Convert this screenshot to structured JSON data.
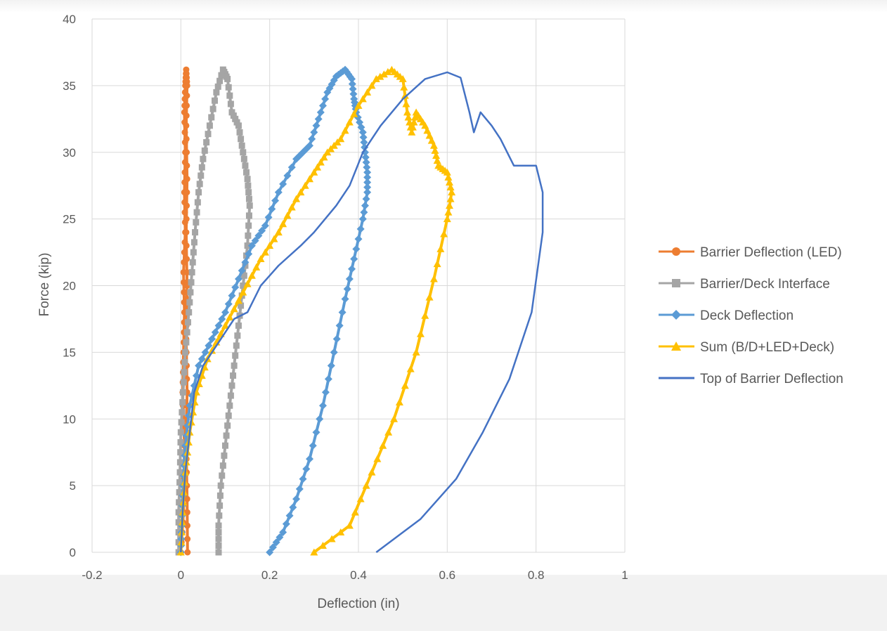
{
  "chart_data": {
    "type": "scatter",
    "title": "",
    "xlabel": "Deflection (in)",
    "ylabel": "Force (kip)",
    "xlim": [
      -0.2,
      1
    ],
    "ylim": [
      0,
      40
    ],
    "x_ticks": [
      "-0.2",
      "0",
      "0.2",
      "0.4",
      "0.6",
      "0.8",
      "1"
    ],
    "y_ticks": [
      "0",
      "5",
      "10",
      "15",
      "20",
      "25",
      "30",
      "35",
      "40"
    ],
    "grid": true,
    "legend_position": "right",
    "series": [
      {
        "name": "Barrier Deflection (LED)",
        "color": "#ED7D31",
        "marker": "circle",
        "points": [
          [
            0,
            0
          ],
          [
            0.006,
            3
          ],
          [
            0.008,
            8
          ],
          [
            0.004,
            12
          ],
          [
            0.006,
            15
          ],
          [
            0.008,
            18
          ],
          [
            0.006,
            21
          ],
          [
            0.01,
            24
          ],
          [
            0.008,
            27
          ],
          [
            0.01,
            30
          ],
          [
            0.008,
            33
          ],
          [
            0.01,
            35
          ],
          [
            0.012,
            36.2
          ],
          [
            0.014,
            35
          ],
          [
            0.012,
            32
          ],
          [
            0.014,
            28
          ],
          [
            0.012,
            24
          ],
          [
            0.014,
            20
          ],
          [
            0.012,
            16
          ],
          [
            0.014,
            12
          ],
          [
            0.012,
            8
          ],
          [
            0.014,
            4
          ],
          [
            0.015,
            0
          ]
        ]
      },
      {
        "name": "Barrier/Deck Interface",
        "color": "#A5A5A5",
        "marker": "square",
        "points": [
          [
            -0.005,
            0
          ],
          [
            -0.005,
            3
          ],
          [
            -0.002,
            6
          ],
          [
            0,
            9
          ],
          [
            0.005,
            12
          ],
          [
            0.01,
            15
          ],
          [
            0.018,
            18
          ],
          [
            0.025,
            21
          ],
          [
            0.032,
            24
          ],
          [
            0.04,
            27
          ],
          [
            0.05,
            29.5
          ],
          [
            0.065,
            32
          ],
          [
            0.08,
            34.5
          ],
          [
            0.095,
            36.2
          ],
          [
            0.105,
            35.5
          ],
          [
            0.115,
            33
          ],
          [
            0.13,
            32
          ],
          [
            0.14,
            30
          ],
          [
            0.15,
            28
          ],
          [
            0.155,
            26
          ],
          [
            0.15,
            23
          ],
          [
            0.14,
            20
          ],
          [
            0.13,
            17
          ],
          [
            0.12,
            14
          ],
          [
            0.11,
            11
          ],
          [
            0.1,
            8
          ],
          [
            0.09,
            5
          ],
          [
            0.085,
            2
          ],
          [
            0.085,
            0
          ]
        ]
      },
      {
        "name": "Deck Deflection",
        "color": "#5B9BD5",
        "marker": "diamond",
        "points": [
          [
            0,
            0
          ],
          [
            0.002,
            2
          ],
          [
            0.005,
            5
          ],
          [
            0.01,
            8
          ],
          [
            0.02,
            11
          ],
          [
            0.04,
            14
          ],
          [
            0.07,
            16
          ],
          [
            0.1,
            18
          ],
          [
            0.13,
            20.5
          ],
          [
            0.16,
            23
          ],
          [
            0.19,
            24.5
          ],
          [
            0.22,
            27
          ],
          [
            0.26,
            29.5
          ],
          [
            0.29,
            30.5
          ],
          [
            0.31,
            32.5
          ],
          [
            0.33,
            34.5
          ],
          [
            0.35,
            35.7
          ],
          [
            0.37,
            36.2
          ],
          [
            0.385,
            35.5
          ],
          [
            0.39,
            34
          ],
          [
            0.395,
            33
          ],
          [
            0.41,
            31.5
          ],
          [
            0.415,
            30
          ],
          [
            0.42,
            28.5
          ],
          [
            0.42,
            27
          ],
          [
            0.41,
            25
          ],
          [
            0.39,
            22
          ],
          [
            0.37,
            19
          ],
          [
            0.345,
            15
          ],
          [
            0.32,
            11
          ],
          [
            0.29,
            7
          ],
          [
            0.26,
            4
          ],
          [
            0.23,
            1.5
          ],
          [
            0.2,
            0
          ]
        ]
      },
      {
        "name": "Sum (B/D+LED+Deck)",
        "color": "#FFC000",
        "marker": "triangle",
        "points": [
          [
            0,
            0
          ],
          [
            0.004,
            3
          ],
          [
            0.01,
            6
          ],
          [
            0.02,
            9
          ],
          [
            0.035,
            12
          ],
          [
            0.06,
            14.5
          ],
          [
            0.1,
            17
          ],
          [
            0.14,
            19.5
          ],
          [
            0.18,
            22
          ],
          [
            0.22,
            24
          ],
          [
            0.26,
            26.5
          ],
          [
            0.3,
            28.5
          ],
          [
            0.33,
            30
          ],
          [
            0.36,
            31
          ],
          [
            0.4,
            33.5
          ],
          [
            0.44,
            35.5
          ],
          [
            0.475,
            36.2
          ],
          [
            0.5,
            35.5
          ],
          [
            0.51,
            33
          ],
          [
            0.52,
            31.5
          ],
          [
            0.53,
            33
          ],
          [
            0.55,
            32
          ],
          [
            0.57,
            30.5
          ],
          [
            0.58,
            29
          ],
          [
            0.6,
            28.5
          ],
          [
            0.61,
            27
          ],
          [
            0.6,
            25
          ],
          [
            0.57,
            20.5
          ],
          [
            0.53,
            15
          ],
          [
            0.48,
            10
          ],
          [
            0.43,
            6
          ],
          [
            0.38,
            2
          ],
          [
            0.3,
            0
          ]
        ]
      },
      {
        "name": "Top of Barrier Deflection",
        "color": "#4472C4",
        "marker": "none",
        "points": [
          [
            0,
            0
          ],
          [
            0.004,
            3
          ],
          [
            0.01,
            6
          ],
          [
            0.02,
            9
          ],
          [
            0.03,
            12
          ],
          [
            0.05,
            14
          ],
          [
            0.08,
            15.5
          ],
          [
            0.12,
            17.5
          ],
          [
            0.15,
            18
          ],
          [
            0.18,
            20
          ],
          [
            0.22,
            21.5
          ],
          [
            0.27,
            23
          ],
          [
            0.3,
            24
          ],
          [
            0.35,
            26
          ],
          [
            0.38,
            27.5
          ],
          [
            0.41,
            30
          ],
          [
            0.45,
            32
          ],
          [
            0.5,
            34
          ],
          [
            0.55,
            35.5
          ],
          [
            0.6,
            36
          ],
          [
            0.63,
            35.6
          ],
          [
            0.65,
            33
          ],
          [
            0.66,
            31.5
          ],
          [
            0.675,
            33
          ],
          [
            0.7,
            32
          ],
          [
            0.72,
            31
          ],
          [
            0.75,
            29
          ],
          [
            0.8,
            29
          ],
          [
            0.815,
            27
          ],
          [
            0.815,
            24
          ],
          [
            0.79,
            18
          ],
          [
            0.74,
            13
          ],
          [
            0.68,
            9
          ],
          [
            0.62,
            5.5
          ],
          [
            0.54,
            2.5
          ],
          [
            0.44,
            0
          ]
        ]
      }
    ]
  }
}
